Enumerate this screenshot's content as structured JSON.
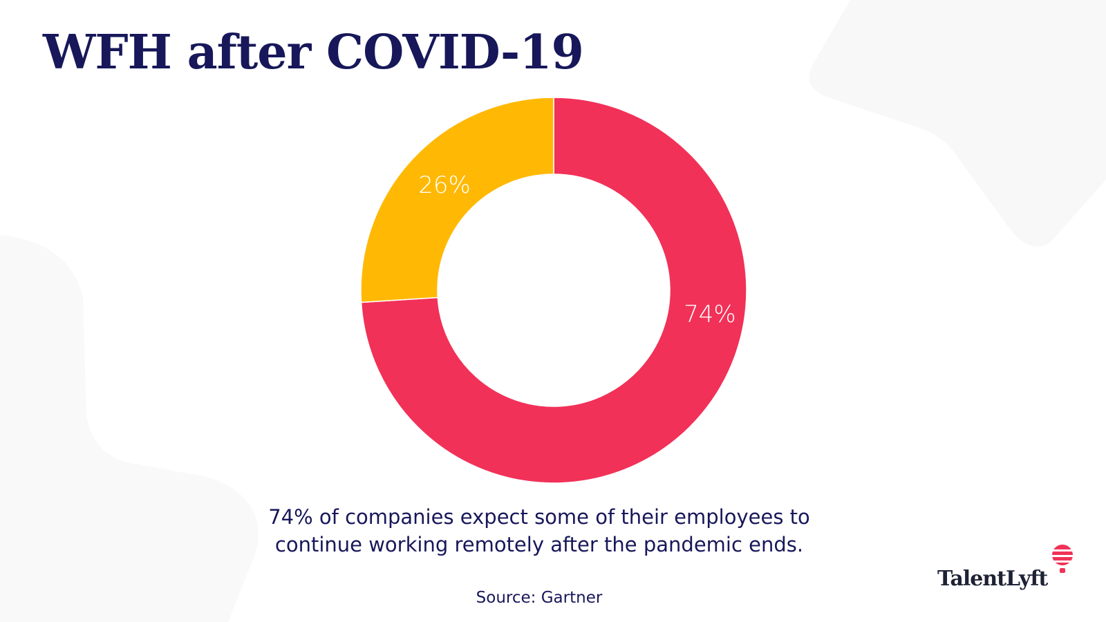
{
  "title": "WFH after COVID-19",
  "chart_data": {
    "type": "pie",
    "donut": true,
    "categories": [
      "",
      ""
    ],
    "values": [
      74,
      26
    ],
    "data_labels": [
      "74%",
      "26%"
    ],
    "colors": [
      "#f13158",
      "#ffb905"
    ],
    "legend": "none"
  },
  "caption": {
    "line1": "74% of companies expect some of their employees to",
    "line2": "continue working remotely after the pandemic ends."
  },
  "source": "Source: Gartner",
  "logo": {
    "text": "TalentLyft",
    "icon": "hot-air-balloon-icon",
    "accent": "#f13158"
  }
}
